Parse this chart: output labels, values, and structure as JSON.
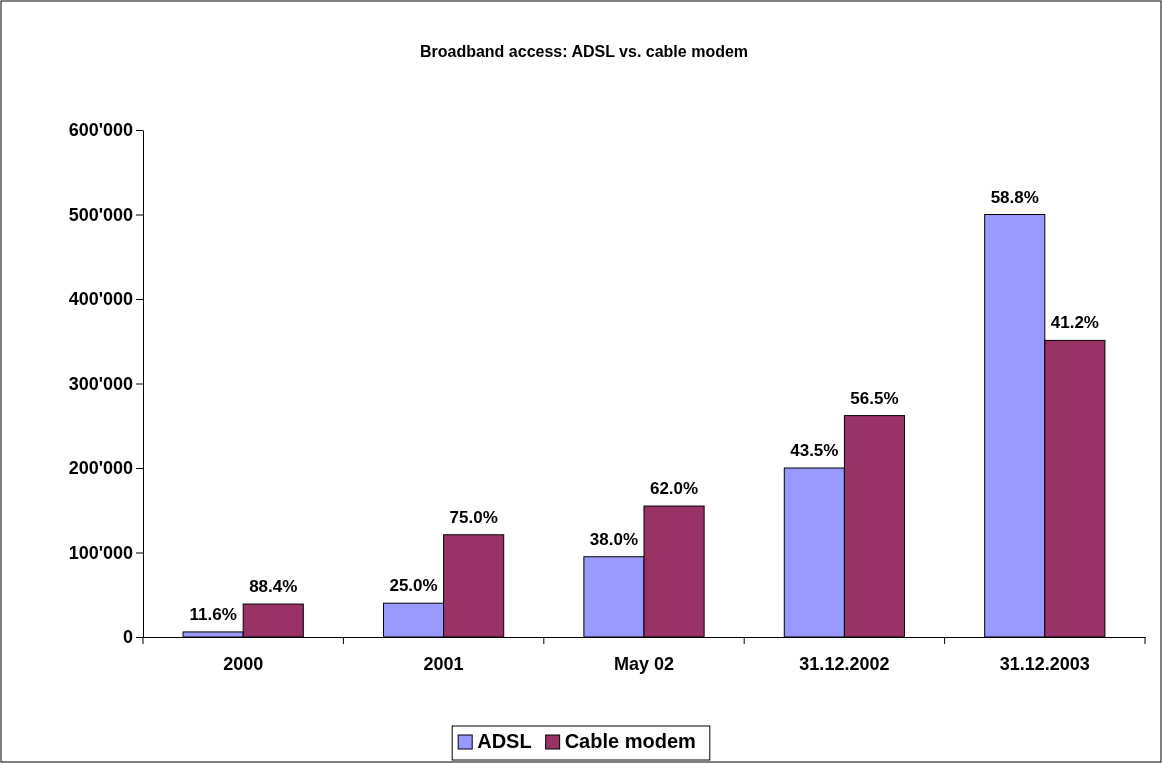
{
  "chart_data": {
    "type": "bar",
    "title": "Broadband access: ADSL vs. cable modem",
    "categories": [
      "2000",
      "2001",
      "May 02",
      "31.12.2002",
      "31.12.2003"
    ],
    "series": [
      {
        "name": "ADSL",
        "color": "#9999ff",
        "values": [
          6000,
          40000,
          95000,
          200000,
          500000
        ]
      },
      {
        "name": "Cable modem",
        "color": "#993366",
        "values": [
          39000,
          121000,
          155000,
          262000,
          351000
        ]
      }
    ],
    "annotations": [
      {
        "text": "11.6%",
        "x": "2000",
        "y": 6000
      },
      {
        "text": "88.4%",
        "x": "2000",
        "y": 39000
      },
      {
        "text": "25.0%",
        "x": "2001",
        "y": 40000
      },
      {
        "text": "75.0%",
        "x": "2001",
        "y": 121000
      },
      {
        "text": "38.0%",
        "x": "May 02",
        "y": 95000
      },
      {
        "text": "62.0%",
        "x": "May 02",
        "y": 155000
      },
      {
        "text": "43.5%",
        "x": "31.12.2002",
        "y": 200000
      },
      {
        "text": "56.5%",
        "x": "31.12.2002",
        "y": 262000
      },
      {
        "text": "58.8%",
        "x": "31.12.2003",
        "y": 500000
      },
      {
        "text": "41.2%",
        "x": "31.12.2003",
        "y": 351000
      }
    ],
    "ylim": [
      0,
      600000
    ],
    "yticks": [
      {
        "value": 0,
        "label": "0"
      },
      {
        "value": 100000,
        "label": "100'000"
      },
      {
        "value": 200000,
        "label": "200'000"
      },
      {
        "value": 300000,
        "label": "300'000"
      },
      {
        "value": 400000,
        "label": "400'000"
      },
      {
        "value": 500000,
        "label": "500'000"
      },
      {
        "value": 600000,
        "label": "600'000"
      }
    ],
    "grid": false,
    "legend": "bottom"
  }
}
